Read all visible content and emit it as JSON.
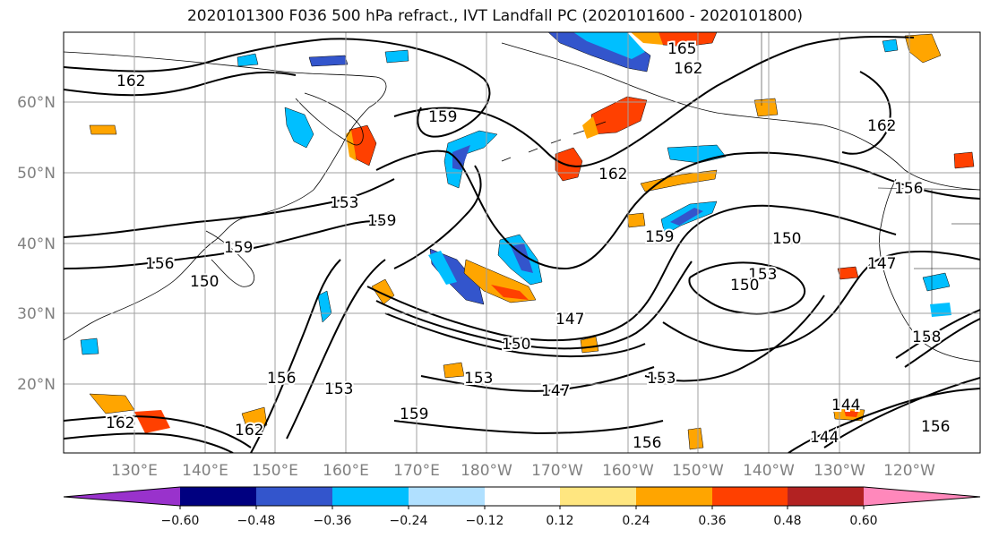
{
  "title": "2020101300 F036 500 hPa refract., IVT Landfall PC (2020101600 - 2020101800)",
  "map": {
    "lat_labels": [
      "60°N",
      "50°N",
      "40°N",
      "30°N",
      "20°N"
    ],
    "lon_labels": [
      "130°E",
      "140°E",
      "150°E",
      "160°E",
      "170°E",
      "180°W",
      "170°W",
      "160°W",
      "150°W",
      "140°W",
      "130°W",
      "120°W"
    ],
    "contour_labels": [
      "162",
      "165",
      "162",
      "159",
      "153",
      "159",
      "159",
      "156",
      "150",
      "162",
      "159",
      "150",
      "147",
      "153",
      "150",
      "147",
      "153",
      "153",
      "147",
      "159",
      "156",
      "144",
      "144",
      "156",
      "162",
      "162",
      "156",
      "153",
      "150",
      "158",
      "156",
      "162"
    ]
  },
  "colorbar": {
    "ticks": [
      "−0.60",
      "−0.48",
      "−0.36",
      "−0.24",
      "−0.12",
      "0.12",
      "0.24",
      "0.36",
      "0.48",
      "0.60"
    ],
    "colors": [
      "#9932cc",
      "#000080",
      "#3355cc",
      "#00bfff",
      "#b0e0ff",
      "#ffffff",
      "#ffe680",
      "#ffa500",
      "#ff4000",
      "#b22222",
      "#ff88bb"
    ]
  }
}
